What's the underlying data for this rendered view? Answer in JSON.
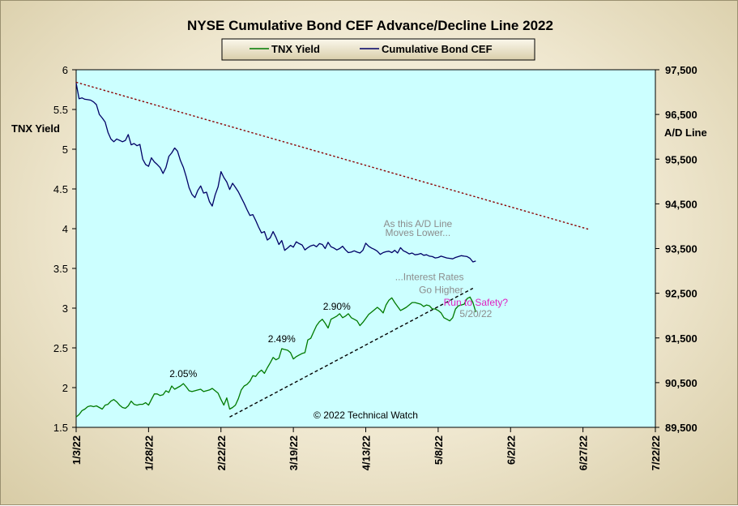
{
  "chart_data": {
    "type": "line",
    "title": "NYSE Cumulative  Bond CEF Advance/Decline  Line 2022",
    "y_left_label": "TNX Yield",
    "y_right_label": "A/D Line",
    "x_ticks": [
      "1/3/22",
      "1/28/22",
      "2/22/22",
      "3/19/22",
      "4/13/22",
      "5/8/22",
      "6/2/22",
      "6/27/22",
      "7/22/22"
    ],
    "y_left_ticks": [
      "1.5",
      "2",
      "2.5",
      "3",
      "3.5",
      "4",
      "4.5",
      "5",
      "5.5",
      "6"
    ],
    "y_right_ticks": [
      "89,500",
      "90,500",
      "91,500",
      "92,500",
      "93,500",
      "94,500",
      "95,500",
      "96,500",
      "97,500"
    ],
    "y_left_range": [
      1.5,
      6
    ],
    "y_right_range": [
      89500,
      97500
    ],
    "grid": false,
    "legend_position": "top-center",
    "colors": {
      "plot_bg": "#ccffff",
      "tnx": "#007a00",
      "cef": "#000066",
      "down_trend": "#8b0000",
      "up_trend": "#000000",
      "note_gray": "#8c8c8c",
      "note_magenta": "#e020c0"
    },
    "series": [
      {
        "name": "TNX Yield",
        "axis": "left",
        "x": [
          0,
          1,
          2,
          3,
          4,
          5,
          6,
          7,
          8,
          9,
          10,
          11,
          12,
          13,
          14,
          15,
          16,
          17,
          18,
          19,
          20,
          21,
          22,
          23,
          24,
          25,
          26,
          27,
          28,
          29,
          30,
          31,
          32,
          33,
          34,
          35,
          36,
          37,
          38,
          39,
          40,
          41,
          42,
          43,
          44,
          45,
          46,
          47,
          48,
          49,
          50,
          51,
          52,
          53,
          54,
          55,
          56,
          57,
          58,
          59,
          60,
          61,
          62,
          63,
          64,
          65,
          66,
          67,
          68,
          69,
          70,
          71,
          72,
          73,
          74,
          75,
          76,
          77,
          78,
          79,
          80,
          81,
          82,
          83,
          84,
          85,
          86,
          87,
          88,
          89,
          90,
          91,
          92,
          93,
          94,
          95,
          96,
          97,
          98,
          99,
          100,
          101,
          102,
          103,
          104,
          105,
          106,
          107,
          108,
          109,
          110,
          111,
          112,
          113,
          114,
          115,
          116,
          117,
          118,
          119,
          120,
          121,
          122,
          123,
          124,
          125,
          126,
          127,
          128,
          129,
          130,
          131,
          132,
          133,
          134,
          135,
          136,
          137,
          138
        ],
        "values": [
          1.63,
          1.66,
          1.71,
          1.73,
          1.76,
          1.77,
          1.76,
          1.77,
          1.75,
          1.73,
          1.78,
          1.79,
          1.83,
          1.85,
          1.82,
          1.78,
          1.75,
          1.74,
          1.77,
          1.83,
          1.79,
          1.78,
          1.79,
          1.79,
          1.81,
          1.78,
          1.85,
          1.92,
          1.92,
          1.9,
          1.91,
          1.96,
          1.94,
          2.02,
          1.98,
          2.0,
          2.02,
          2.05,
          2.01,
          1.96,
          1.95,
          1.96,
          1.97,
          1.98,
          1.95,
          1.96,
          1.97,
          1.99,
          1.96,
          1.93,
          1.85,
          1.78,
          1.87,
          1.73,
          1.75,
          1.78,
          1.86,
          1.97,
          2.02,
          2.04,
          2.08,
          2.15,
          2.14,
          2.19,
          2.22,
          2.18,
          2.25,
          2.31,
          2.38,
          2.35,
          2.37,
          2.49,
          2.48,
          2.47,
          2.44,
          2.36,
          2.39,
          2.41,
          2.43,
          2.44,
          2.6,
          2.62,
          2.7,
          2.78,
          2.83,
          2.86,
          2.81,
          2.75,
          2.86,
          2.88,
          2.9,
          2.93,
          2.88,
          2.9,
          2.93,
          2.88,
          2.86,
          2.84,
          2.78,
          2.82,
          2.87,
          2.92,
          2.95,
          2.98,
          3.01,
          2.98,
          2.94,
          3.04,
          3.1,
          3.13,
          3.07,
          3.02,
          2.97,
          2.99,
          3.01,
          3.04,
          3.07,
          3.07,
          3.06,
          3.05,
          3.02,
          3.04,
          3.03,
          2.99,
          2.99,
          2.97,
          2.94,
          2.88,
          2.86,
          2.84,
          2.88,
          2.99,
          3.03,
          3.04,
          3.05,
          3.12,
          3.14,
          3.07,
          2.95
        ],
        "data_labels": [
          {
            "text": "2.05%",
            "x": 37,
            "y": 2.05
          },
          {
            "text": "2.49%",
            "x": 71,
            "y": 2.49
          },
          {
            "text": "2.90%",
            "x": 90,
            "y": 2.9
          }
        ]
      },
      {
        "name": "Cumulative Bond CEF",
        "axis": "right",
        "x": [
          0,
          1,
          2,
          3,
          4,
          5,
          6,
          7,
          8,
          9,
          10,
          11,
          12,
          13,
          14,
          15,
          16,
          17,
          18,
          19,
          20,
          21,
          22,
          23,
          24,
          25,
          26,
          27,
          28,
          29,
          30,
          31,
          32,
          33,
          34,
          35,
          36,
          37,
          38,
          39,
          40,
          41,
          42,
          43,
          44,
          45,
          46,
          47,
          48,
          49,
          50,
          51,
          52,
          53,
          54,
          55,
          56,
          57,
          58,
          59,
          60,
          61,
          62,
          63,
          64,
          65,
          66,
          67,
          68,
          69,
          70,
          71,
          72,
          73,
          74,
          75,
          76,
          77,
          78,
          79,
          80,
          81,
          82,
          83,
          84,
          85,
          86,
          87,
          88,
          89,
          90,
          91,
          92,
          93,
          94,
          95,
          96,
          97,
          98,
          99,
          100,
          101,
          102,
          103,
          104,
          105,
          106,
          107,
          108,
          109,
          110,
          111,
          112,
          113,
          114,
          115,
          116,
          117,
          118,
          119,
          120,
          121,
          122,
          123,
          124,
          125,
          126,
          127,
          128,
          129,
          130,
          131,
          132,
          133,
          134,
          135,
          136,
          137,
          138
        ],
        "values": [
          97200,
          96850,
          96870,
          96840,
          96830,
          96820,
          96780,
          96720,
          96500,
          96420,
          96330,
          96100,
          95950,
          95890,
          95950,
          95920,
          95890,
          95920,
          96050,
          95820,
          95850,
          95800,
          95830,
          95500,
          95380,
          95340,
          95530,
          95440,
          95380,
          95310,
          95180,
          95310,
          95560,
          95640,
          95750,
          95680,
          95470,
          95320,
          95110,
          94860,
          94710,
          94640,
          94800,
          94900,
          94740,
          94760,
          94550,
          94450,
          94700,
          94880,
          95220,
          95090,
          94990,
          94820,
          94960,
          94870,
          94770,
          94640,
          94510,
          94370,
          94240,
          94260,
          94130,
          93980,
          93850,
          93880,
          93690,
          93740,
          93880,
          93750,
          93590,
          93680,
          93460,
          93510,
          93570,
          93530,
          93650,
          93610,
          93580,
          93470,
          93520,
          93560,
          93580,
          93540,
          93610,
          93590,
          93500,
          93640,
          93540,
          93510,
          93470,
          93500,
          93550,
          93470,
          93410,
          93420,
          93450,
          93420,
          93400,
          93460,
          93620,
          93550,
          93510,
          93480,
          93440,
          93370,
          93410,
          93430,
          93440,
          93410,
          93460,
          93400,
          93520,
          93450,
          93420,
          93380,
          93400,
          93360,
          93370,
          93390,
          93350,
          93360,
          93330,
          93320,
          93290,
          93300,
          93330,
          93310,
          93290,
          93280,
          93270,
          93300,
          93320,
          93340,
          93330,
          93320,
          93280,
          93200,
          93220
        ],
        "actual_path_note": ""
      }
    ],
    "trendlines": [
      {
        "axis": "right",
        "style": "dotted",
        "color": "down_trend",
        "from": [
          0,
          97220
        ],
        "to": [
          177,
          93930
        ]
      },
      {
        "axis": "left",
        "style": "dashed",
        "color": "up_trend",
        "from": [
          53,
          1.63
        ],
        "to": [
          137,
          3.25
        ]
      }
    ],
    "annotations": [
      {
        "text": "As this A/D Line",
        "x": 118,
        "y_right": 93980,
        "color": "note_gray"
      },
      {
        "text": "Moves  Lower...",
        "x": 118,
        "y_right": 93780,
        "color": "note_gray"
      },
      {
        "text": "...Interest Rates",
        "x": 122,
        "y_left": 3.35,
        "color": "note_gray"
      },
      {
        "text": "Go Higher",
        "x": 126,
        "y_left": 3.19,
        "color": "note_gray"
      },
      {
        "text": "Run to Safety?",
        "x": 138,
        "y_left": 3.03,
        "color": "note_magenta"
      },
      {
        "text": "5/20/22",
        "x": 138,
        "y_left": 2.89,
        "color": "note_gray"
      },
      {
        "text": "© 2022 Technical Watch",
        "x": 100,
        "y_left": 1.61,
        "color": "black"
      }
    ]
  }
}
